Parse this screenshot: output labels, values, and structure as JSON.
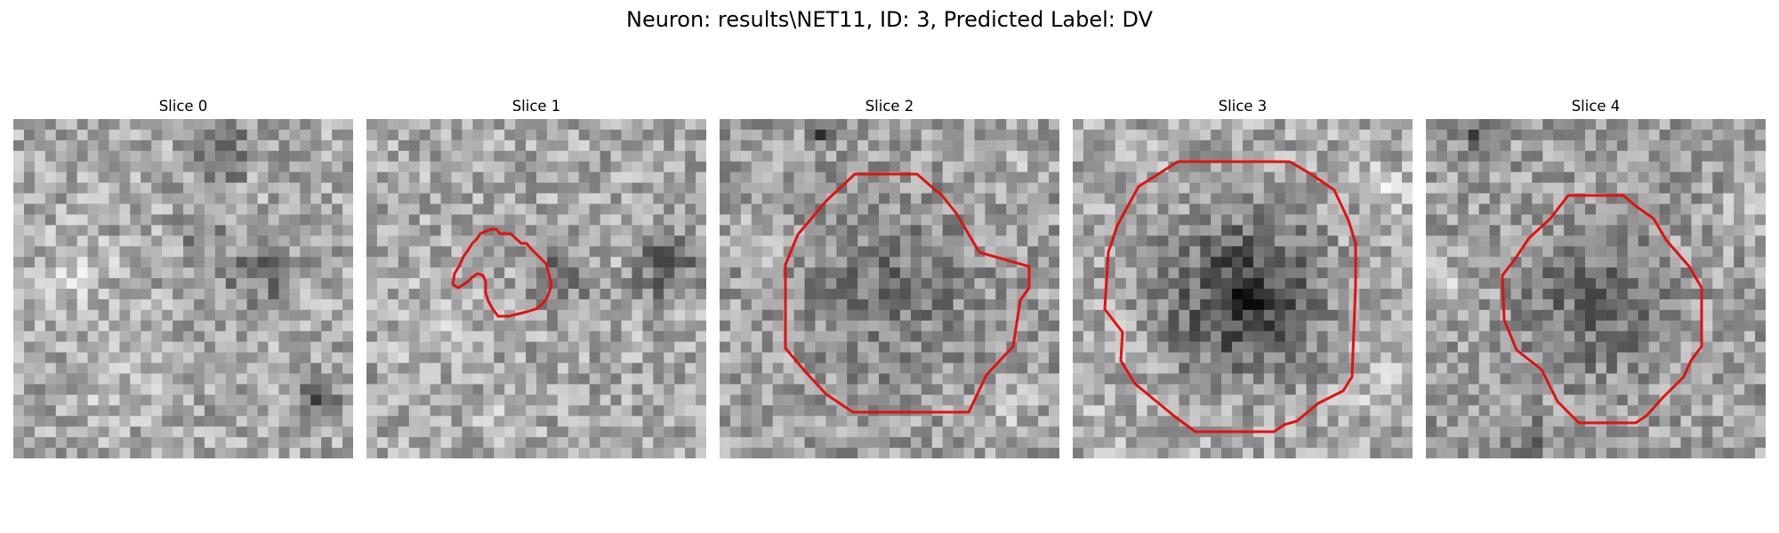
{
  "figure": {
    "title": "Neuron: results\\NET11, ID: 3, Predicted Label: DV",
    "contour_color": "#e11212",
    "colormap": "gray"
  },
  "slices": [
    {
      "title": "Slice 0",
      "has_contour": false,
      "texture": "faint diagonal darker band, upper-right dark region"
    },
    {
      "title": "Slice 1",
      "has_contour": true,
      "texture": "small irregular dark cluster near center"
    },
    {
      "title": "Slice 2",
      "has_contour": true,
      "texture": "mid-grey round cell body with lighter surroundings"
    },
    {
      "title": "Slice 3",
      "has_contour": true,
      "texture": "large dark round cell body"
    },
    {
      "title": "Slice 4",
      "has_contour": true,
      "texture": "mid-dark round cell body"
    }
  ]
}
